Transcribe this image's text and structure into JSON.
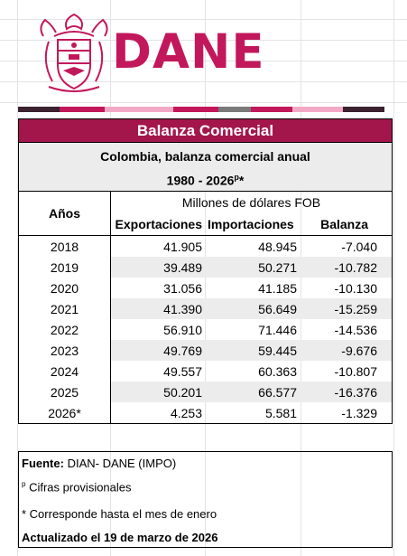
{
  "brand": {
    "name": "DANE",
    "color": "#c2185b"
  },
  "stripe_colors": [
    "#3a2230",
    "#c2185b",
    "#f2a9c6",
    "#c2185b",
    "#7a7a7a",
    "#c2185b",
    "#f2a9c6",
    "#3a2230"
  ],
  "table": {
    "title": "Balanza Comercial",
    "subtitle_line1": "Colombia, balanza comercial anual",
    "subtitle_line2": "1980 - 2026",
    "subtitle_sup": "p",
    "subtitle_suffix": "*",
    "col_years": "Años",
    "units": "Millones de dólares FOB",
    "col_exports": "Exportaciones",
    "col_imports": "Importaciones",
    "col_balance": "Balanza",
    "rows": [
      {
        "year": "2018",
        "exports": "41.905",
        "imports": "48.945",
        "balance": "-7.040"
      },
      {
        "year": "2019",
        "exports": "39.489",
        "imports": "50.271",
        "balance": "-10.782"
      },
      {
        "year": "2020",
        "exports": "31.056",
        "imports": "41.185",
        "balance": "-10.130"
      },
      {
        "year": "2021",
        "exports": "41.390",
        "imports": "56.649",
        "balance": "-15.259"
      },
      {
        "year": "2022",
        "exports": "56.910",
        "imports": "71.446",
        "balance": "-14.536"
      },
      {
        "year": "2023",
        "exports": "49.769",
        "imports": "59.445",
        "balance": "-9.676"
      },
      {
        "year": "2024",
        "exports": "49.557",
        "imports": "60.363",
        "balance": "-10.807"
      },
      {
        "year": "2025",
        "exports": "50.201",
        "imports": "66.577",
        "balance": "-16.376"
      },
      {
        "year": "2026*",
        "exports": "4.253",
        "imports": "5.581",
        "balance": "-1.329"
      }
    ]
  },
  "notes": {
    "source_label": "Fuente:",
    "source_value": "DIAN- DANE (IMPO)",
    "provisional_sup": "p",
    "provisional_text": "Cifras provisionales",
    "january_note": "* Corresponde hasta el mes de enero",
    "updated": "Actualizado el 19 de marzo de 2026"
  }
}
